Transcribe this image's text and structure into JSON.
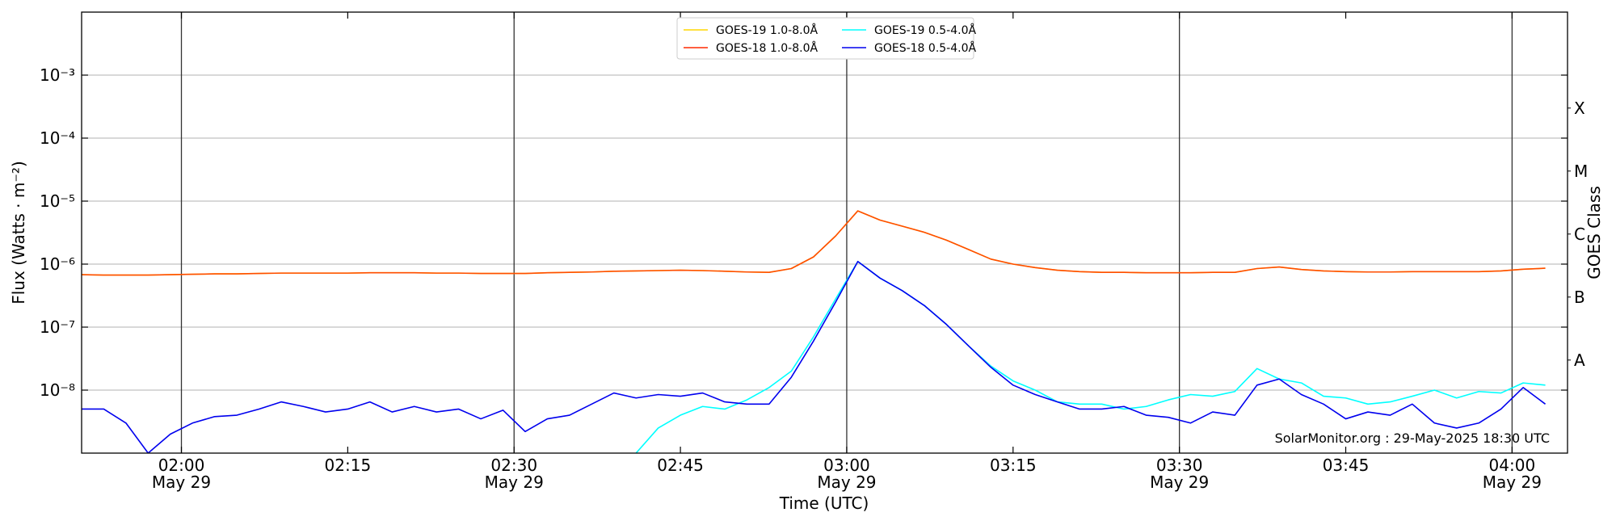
{
  "chart_data": {
    "type": "line",
    "yscale": "log",
    "y_label": "Flux (Watts · m⁻²)",
    "x_label": "Time (UTC)",
    "y2_label": "GOES Class",
    "annotation": "SolarMonitor.org : 29-May-2025 18:30 UTC",
    "legend": "upper center",
    "grid": true,
    "xlim": [
      "01:51",
      "04:05"
    ],
    "ylim": [
      1e-09,
      0.01
    ],
    "y2lim": [
      1e-09,
      0.01
    ],
    "xticks": [
      {
        "value": "02:00",
        "label": [
          "02:00",
          "May 29"
        ]
      },
      "02:15",
      {
        "value": "02:30",
        "label": [
          "02:30",
          "May 29"
        ]
      },
      "02:45",
      {
        "value": "03:00",
        "label": [
          "03:00",
          "May 29"
        ]
      },
      "03:15",
      {
        "value": "03:30",
        "label": [
          "03:30",
          "May 29"
        ]
      },
      "03:45",
      {
        "value": "04:00",
        "label": [
          "04:00",
          "May 29"
        ]
      }
    ],
    "yticks": [
      {
        "value": 1e-08,
        "label": "10⁻⁸"
      },
      {
        "value": 1e-07,
        "label": "10⁻⁷"
      },
      {
        "value": 1e-06,
        "label": "10⁻⁶"
      },
      {
        "value": 1e-05,
        "label": "10⁻⁵"
      },
      {
        "value": 0.0001,
        "label": "10⁻⁴"
      },
      {
        "value": 0.001,
        "label": "10⁻³"
      }
    ],
    "y2ticks": [
      {
        "value": 3e-08,
        "label": "A"
      },
      {
        "value": 3e-07,
        "label": "B"
      },
      {
        "value": 3e-06,
        "label": "C"
      },
      {
        "value": 3e-05,
        "label": "M"
      },
      {
        "value": 0.0003,
        "label": "X"
      }
    ],
    "x": [
      "01:51",
      "01:53",
      "01:55",
      "01:57",
      "01:59",
      "02:01",
      "02:03",
      "02:05",
      "02:07",
      "02:09",
      "02:11",
      "02:13",
      "02:15",
      "02:17",
      "02:19",
      "02:21",
      "02:23",
      "02:25",
      "02:27",
      "02:29",
      "02:31",
      "02:33",
      "02:35",
      "02:37",
      "02:39",
      "02:41",
      "02:43",
      "02:45",
      "02:47",
      "02:49",
      "02:51",
      "02:53",
      "02:55",
      "02:57",
      "02:59",
      "03:01",
      "03:03",
      "03:05",
      "03:07",
      "03:09",
      "03:11",
      "03:13",
      "03:15",
      "03:17",
      "03:19",
      "03:21",
      "03:23",
      "03:25",
      "03:27",
      "03:29",
      "03:31",
      "03:33",
      "03:35",
      "03:37",
      "03:39",
      "03:41",
      "03:43",
      "03:45",
      "03:47",
      "03:49",
      "03:51",
      "03:53",
      "03:55",
      "03:57",
      "03:59",
      "04:01",
      "04:03"
    ],
    "series": [
      {
        "name": "GOES-19 1.0-8.0Å",
        "color": "#ffd700",
        "values": [
          6.8e-07,
          6.7e-07,
          6.7e-07,
          6.7e-07,
          6.8e-07,
          6.9e-07,
          7e-07,
          7e-07,
          7.1e-07,
          7.2e-07,
          7.2e-07,
          7.2e-07,
          7.2e-07,
          7.3e-07,
          7.3e-07,
          7.3e-07,
          7.2e-07,
          7.2e-07,
          7.1e-07,
          7.1e-07,
          7.1e-07,
          7.3e-07,
          7.4e-07,
          7.5e-07,
          7.7e-07,
          7.8e-07,
          7.9e-07,
          8e-07,
          7.9e-07,
          7.7e-07,
          7.5e-07,
          7.4e-07,
          8.5e-07,
          1.3e-06,
          2.8e-06,
          7e-06,
          5e-06,
          4e-06,
          3.2e-06,
          2.4e-06,
          1.7e-06,
          1.2e-06,
          1e-06,
          8.8e-07,
          8e-07,
          7.6e-07,
          7.4e-07,
          7.4e-07,
          7.3e-07,
          7.3e-07,
          7.3e-07,
          7.4e-07,
          7.4e-07,
          8.5e-07,
          9e-07,
          8.2e-07,
          7.8e-07,
          7.6e-07,
          7.5e-07,
          7.5e-07,
          7.6e-07,
          7.6e-07,
          7.6e-07,
          7.6e-07,
          7.8e-07,
          8.3e-07,
          8.6e-07
        ]
      },
      {
        "name": "GOES-18 1.0-8.0Å",
        "color": "#ff2a00",
        "values": [
          6.8e-07,
          6.7e-07,
          6.7e-07,
          6.7e-07,
          6.8e-07,
          6.9e-07,
          7e-07,
          7e-07,
          7.1e-07,
          7.2e-07,
          7.2e-07,
          7.2e-07,
          7.2e-07,
          7.3e-07,
          7.3e-07,
          7.3e-07,
          7.2e-07,
          7.2e-07,
          7.1e-07,
          7.1e-07,
          7.1e-07,
          7.3e-07,
          7.4e-07,
          7.5e-07,
          7.7e-07,
          7.8e-07,
          7.9e-07,
          8e-07,
          7.9e-07,
          7.7e-07,
          7.5e-07,
          7.4e-07,
          8.5e-07,
          1.3e-06,
          2.8e-06,
          7e-06,
          5e-06,
          4e-06,
          3.2e-06,
          2.4e-06,
          1.7e-06,
          1.2e-06,
          1e-06,
          8.8e-07,
          8e-07,
          7.6e-07,
          7.4e-07,
          7.4e-07,
          7.3e-07,
          7.3e-07,
          7.3e-07,
          7.4e-07,
          7.4e-07,
          8.5e-07,
          9e-07,
          8.2e-07,
          7.8e-07,
          7.6e-07,
          7.5e-07,
          7.5e-07,
          7.6e-07,
          7.6e-07,
          7.6e-07,
          7.6e-07,
          7.8e-07,
          8.3e-07,
          8.6e-07
        ]
      },
      {
        "name": "GOES-19 0.5-4.0Å",
        "color": "#00ffff",
        "values": [
          null,
          null,
          null,
          null,
          null,
          null,
          null,
          null,
          null,
          null,
          null,
          null,
          null,
          null,
          null,
          null,
          null,
          null,
          null,
          null,
          null,
          null,
          null,
          null,
          null,
          1e-09,
          2.5e-09,
          4e-09,
          5.5e-09,
          5e-09,
          7e-09,
          1.1e-08,
          2e-08,
          7e-08,
          2.8e-07,
          1.1e-06,
          6e-07,
          3.8e-07,
          2.2e-07,
          1.1e-07,
          5e-08,
          2.4e-08,
          1.4e-08,
          1e-08,
          6.5e-09,
          6e-09,
          6e-09,
          5e-09,
          5.5e-09,
          7e-09,
          8.5e-09,
          8e-09,
          9.5e-09,
          2.2e-08,
          1.5e-08,
          1.3e-08,
          8e-09,
          7.5e-09,
          6e-09,
          6.5e-09,
          8e-09,
          1e-08,
          7.5e-09,
          9.5e-09,
          9e-09,
          1.3e-08,
          1.2e-08
        ]
      },
      {
        "name": "GOES-18 0.5-4.0Å",
        "color": "#0000ee",
        "values": [
          5e-09,
          5e-09,
          3e-09,
          1e-09,
          2e-09,
          3e-09,
          3.8e-09,
          4e-09,
          5e-09,
          6.5e-09,
          5.5e-09,
          4.5e-09,
          5e-09,
          6.5e-09,
          4.5e-09,
          5.5e-09,
          4.5e-09,
          5e-09,
          3.5e-09,
          4.8e-09,
          2.2e-09,
          3.5e-09,
          4e-09,
          6e-09,
          9e-09,
          7.5e-09,
          8.5e-09,
          8e-09,
          9e-09,
          6.5e-09,
          6e-09,
          6e-09,
          1.6e-08,
          6e-08,
          2.5e-07,
          1.1e-06,
          6e-07,
          3.8e-07,
          2.2e-07,
          1.1e-07,
          5e-08,
          2.3e-08,
          1.2e-08,
          8.5e-09,
          6.5e-09,
          5e-09,
          5e-09,
          5.5e-09,
          4e-09,
          3.7e-09,
          3e-09,
          4.5e-09,
          4e-09,
          1.2e-08,
          1.5e-08,
          8.5e-09,
          6e-09,
          3.5e-09,
          4.5e-09,
          4e-09,
          6e-09,
          3e-09,
          2.5e-09,
          3e-09,
          5e-09,
          1.1e-08,
          6e-09
        ]
      }
    ]
  }
}
